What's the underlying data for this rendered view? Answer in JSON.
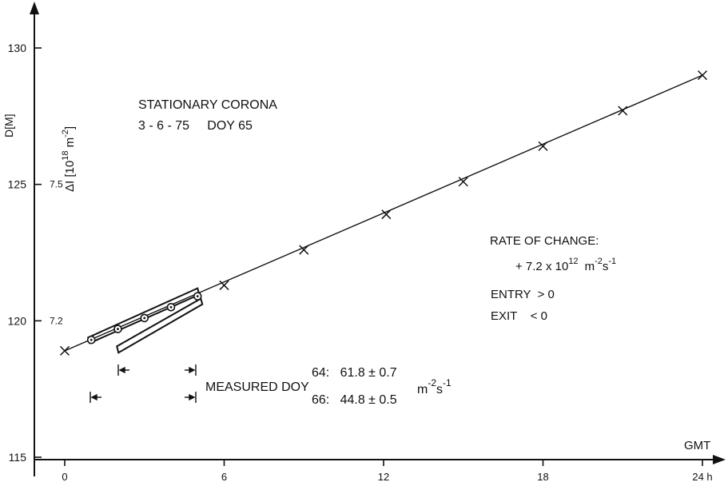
{
  "chart_data": {
    "type": "line",
    "xlabel": "GMT",
    "ylabel_outer": "D[M]",
    "ylabel_inner": "ΔI [10",
    "ylabel_inner_exp": "18",
    "ylabel_inner_unit": "m",
    "ylabel_inner_unit_exp": "-2",
    "ylabel_inner_close": "]",
    "xlim": [
      0,
      24
    ],
    "ylim": [
      115,
      130
    ],
    "x_ticks": [
      {
        "value": 0,
        "label": "0"
      },
      {
        "value": 6,
        "label": "6"
      },
      {
        "value": 12,
        "label": "12"
      },
      {
        "value": 18,
        "label": "18"
      },
      {
        "value": 24,
        "label": "24 h"
      }
    ],
    "y_ticks": [
      {
        "value": 115,
        "label": "115"
      },
      {
        "value": 120,
        "label": "120"
      },
      {
        "value": 125,
        "label": "125"
      },
      {
        "value": 130,
        "label": "130"
      }
    ],
    "y_inner_ticks": [
      {
        "value": 120,
        "label": "7.2"
      },
      {
        "value": 125,
        "label": "7.5"
      }
    ],
    "series": [
      {
        "marker": "x",
        "x": [
          0,
          6,
          9,
          12.1,
          15,
          18,
          21,
          24
        ],
        "y": [
          118.9,
          121.3,
          122.6,
          123.9,
          125.1,
          126.4,
          127.7,
          129.0
        ]
      },
      {
        "marker": "circle",
        "x": [
          1,
          2,
          3,
          4,
          5
        ],
        "y": [
          119.3,
          119.7,
          120.1,
          120.5,
          120.9
        ]
      }
    ],
    "grid": false
  },
  "annotations": {
    "title_line1": "STATIONARY CORONA",
    "title_line2": "3 - 6 - 75     DOY 65",
    "rate_label": "RATE OF CHANGE:",
    "rate_value": "+ 7.2 x 10",
    "rate_exp": "12",
    "rate_unit": "m",
    "rate_unit_exp1": "-2",
    "rate_unit_s": "s",
    "rate_unit_exp2": "-1",
    "entry": "ENTRY  > 0",
    "exit": "EXIT    < 0",
    "measured": "MEASURED DOY",
    "doy64": "64:   61.8 ± 0.7",
    "doy66": "66:   44.8 ± 0.5",
    "meas_unit": "m",
    "meas_unit_exp1": "-2",
    "meas_unit_s": "s",
    "meas_unit_exp2": "-1"
  }
}
